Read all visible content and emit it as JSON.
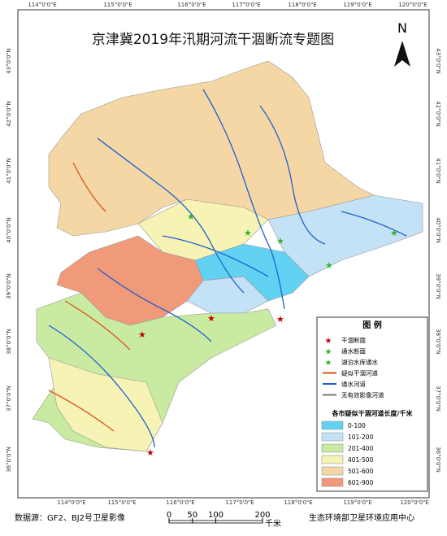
{
  "title": "京津冀2019年汛期河流干涸断流专题图",
  "north": "N",
  "graticule": {
    "lon": [
      "114°0'0\"E",
      "115°0'0\"E",
      "116°0'0\"E",
      "117°0'0\"E",
      "118°0'0\"E",
      "119°0'0\"E",
      "120°0'0\"E"
    ],
    "lat": [
      "43°0'0\"N",
      "42°0'0\"N",
      "41°0'0\"N",
      "40°0'0\"N",
      "39°0'0\"N",
      "38°0'0\"N",
      "37°0'0\"N",
      "36°0'0\"N"
    ]
  },
  "legend": {
    "title": "图 例",
    "symbols": [
      {
        "label": "干涸断面",
        "color": "#c00000"
      },
      {
        "label": "通水断面",
        "color": "#2fb52f"
      },
      {
        "label": "湖泊水库通水",
        "color": "#2fb52f"
      },
      {
        "label": "疑似干涸河道",
        "color": "#d9531e"
      },
      {
        "label": "通水河道",
        "color": "#1f5fd1"
      },
      {
        "label": "无有效影像河道",
        "color": "#777777"
      }
    ],
    "class_title": "各市疑似干涸河道长度/千米",
    "classes": [
      {
        "label": "0-100",
        "color": "#62d2f2"
      },
      {
        "label": "101-200",
        "color": "#c3e2f5"
      },
      {
        "label": "201-400",
        "color": "#c9eba1"
      },
      {
        "label": "401-500",
        "color": "#f6f3b4"
      },
      {
        "label": "501-600",
        "color": "#f4d7a5"
      },
      {
        "label": "601-900",
        "color": "#f19a79"
      }
    ]
  },
  "scale": {
    "ticks": [
      0,
      50,
      100,
      200
    ],
    "unit": "千米"
  },
  "footer": {
    "source": "数据源：GF2、BJ2号卫星影像",
    "credit": "生态环境部卫星环境应用中心"
  }
}
